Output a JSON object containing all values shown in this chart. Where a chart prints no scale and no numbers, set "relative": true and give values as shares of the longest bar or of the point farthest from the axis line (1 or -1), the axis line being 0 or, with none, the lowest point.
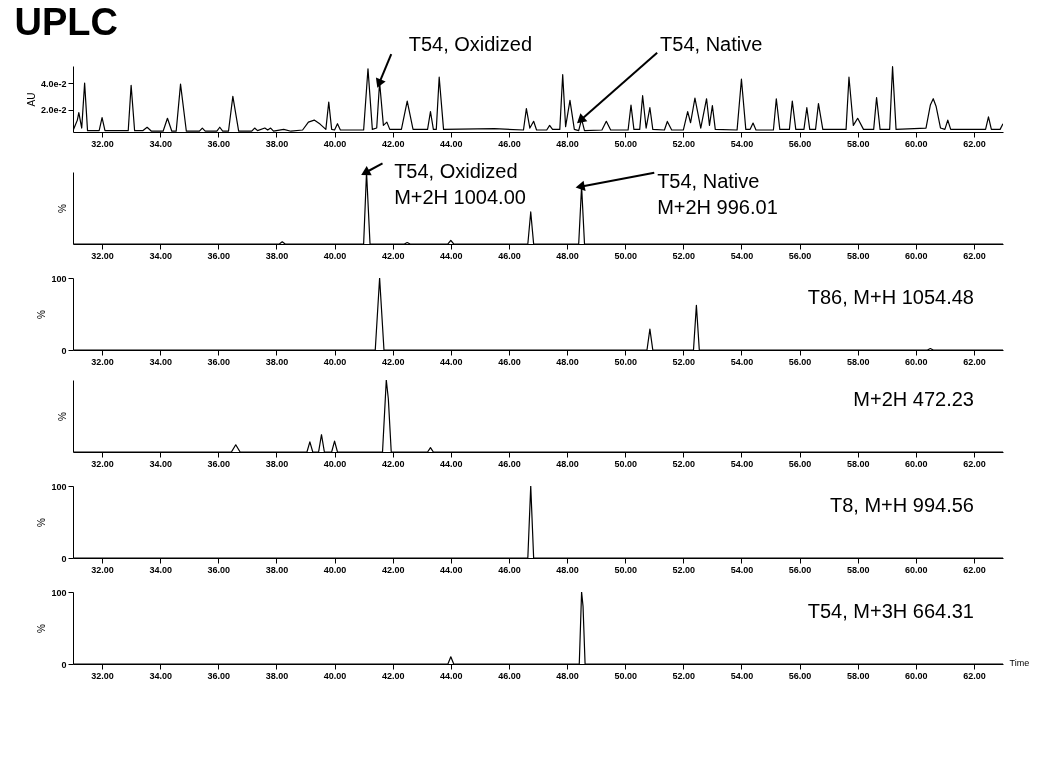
{
  "chart_data": [
    {
      "type": "line",
      "title": "UPLC",
      "ylabel": "AU",
      "grid": false,
      "legend": false,
      "color": "#000000",
      "xlim": [
        31,
        63
      ],
      "xticks": [
        {
          "value": 32,
          "label": "32.00"
        },
        {
          "value": 34,
          "label": "34.00"
        },
        {
          "value": 36,
          "label": "36.00"
        },
        {
          "value": 38,
          "label": "38.00"
        },
        {
          "value": 40,
          "label": "40.00"
        },
        {
          "value": 42,
          "label": "42.00"
        },
        {
          "value": 44,
          "label": "44.00"
        },
        {
          "value": 46,
          "label": "46.00"
        },
        {
          "value": 48,
          "label": "48.00"
        },
        {
          "value": 50,
          "label": "50.00"
        },
        {
          "value": 52,
          "label": "52.00"
        },
        {
          "value": 54,
          "label": "54.00"
        },
        {
          "value": 56,
          "label": "56.00"
        },
        {
          "value": 58,
          "label": "58.00"
        },
        {
          "value": 60,
          "label": "60.00"
        },
        {
          "value": 62,
          "label": "62.00"
        }
      ],
      "ylim": [
        0.003,
        0.053
      ],
      "yticks": [
        {
          "value": 0.02,
          "label": "2.0e-2"
        },
        {
          "value": 0.04,
          "label": "4.0e-2"
        }
      ],
      "x": [
        31.0,
        31.15,
        31.2,
        31.3,
        31.4,
        31.5,
        31.9,
        32.0,
        32.1,
        32.9,
        33.0,
        33.12,
        33.4,
        33.55,
        33.7,
        34.1,
        34.25,
        34.4,
        34.55,
        34.7,
        34.9,
        35.35,
        35.45,
        35.55,
        35.95,
        36.05,
        36.15,
        36.35,
        36.5,
        36.7,
        37.15,
        37.25,
        37.35,
        37.6,
        37.7,
        37.8,
        37.9,
        38.25,
        38.5,
        38.9,
        39.1,
        39.3,
        39.5,
        39.7,
        39.8,
        39.9,
        40.0,
        40.1,
        40.2,
        41.0,
        41.15,
        41.3,
        41.45,
        41.55,
        41.68,
        41.8,
        41.9,
        42.3,
        42.5,
        42.7,
        43.2,
        43.3,
        43.4,
        43.5,
        43.6,
        43.75,
        45.5,
        46.5,
        46.6,
        46.72,
        46.85,
        46.95,
        47.3,
        47.4,
        47.5,
        47.75,
        47.85,
        47.95,
        48.1,
        48.25,
        48.4,
        48.5,
        48.6,
        49.2,
        49.35,
        49.5,
        50.1,
        50.2,
        50.3,
        50.5,
        50.6,
        50.72,
        50.85,
        50.95,
        51.35,
        51.45,
        51.6,
        52.0,
        52.15,
        52.25,
        52.4,
        52.6,
        52.8,
        52.9,
        53.0,
        53.1,
        53.85,
        54.0,
        54.15,
        54.3,
        54.4,
        54.5,
        55.1,
        55.2,
        55.32,
        55.65,
        55.75,
        55.87,
        56.15,
        56.25,
        56.35,
        56.55,
        56.65,
        56.8,
        57.6,
        57.7,
        57.85,
        58.0,
        58.2,
        58.55,
        58.65,
        58.77,
        59.1,
        59.2,
        59.32,
        60.35,
        60.5,
        60.6,
        60.7,
        60.85,
        61.0,
        61.1,
        61.2,
        62.4,
        62.5,
        62.6,
        62.9,
        63.0
      ],
      "values": [
        0.004,
        0.012,
        0.0177,
        0.006,
        0.04,
        0.004,
        0.004,
        0.0139,
        0.004,
        0.004,
        0.0384,
        0.004,
        0.004,
        0.0066,
        0.0036,
        0.0036,
        0.0134,
        0.0036,
        0.0036,
        0.0393,
        0.0036,
        0.0036,
        0.0059,
        0.0036,
        0.0036,
        0.0066,
        0.0036,
        0.0036,
        0.03,
        0.0036,
        0.0036,
        0.006,
        0.004,
        0.006,
        0.0045,
        0.006,
        0.0036,
        0.005,
        0.0036,
        0.0045,
        0.0105,
        0.012,
        0.009,
        0.005,
        0.0257,
        0.005,
        0.0045,
        0.0093,
        0.0045,
        0.0045,
        0.0509,
        0.005,
        0.006,
        0.0407,
        0.008,
        0.0105,
        0.005,
        0.005,
        0.0264,
        0.005,
        0.005,
        0.0184,
        0.005,
        0.005,
        0.0445,
        0.005,
        0.0055,
        0.0045,
        0.0207,
        0.006,
        0.0111,
        0.0045,
        0.0045,
        0.008,
        0.005,
        0.005,
        0.0464,
        0.007,
        0.027,
        0.005,
        0.004,
        0.0127,
        0.004,
        0.0045,
        0.0111,
        0.0045,
        0.0045,
        0.0234,
        0.005,
        0.005,
        0.0305,
        0.006,
        0.0214,
        0.005,
        0.0045,
        0.011,
        0.0045,
        0.0045,
        0.0184,
        0.01,
        0.0286,
        0.006,
        0.0282,
        0.008,
        0.023,
        0.005,
        0.0045,
        0.043,
        0.005,
        0.005,
        0.0098,
        0.0045,
        0.0045,
        0.0282,
        0.005,
        0.005,
        0.0264,
        0.005,
        0.005,
        0.0214,
        0.005,
        0.005,
        0.0245,
        0.005,
        0.005,
        0.0445,
        0.008,
        0.0134,
        0.005,
        0.005,
        0.0291,
        0.005,
        0.005,
        0.0525,
        0.005,
        0.006,
        0.0234,
        0.0282,
        0.0223,
        0.006,
        0.005,
        0.012,
        0.005,
        0.005,
        0.0145,
        0.005,
        0.005,
        0.0093
      ],
      "annotations": [
        {
          "text": "T54, Oxidized",
          "x": 41.55,
          "y": 0.0407
        },
        {
          "text": "T54, Native",
          "x": 48.5,
          "y": 0.0127
        }
      ]
    },
    {
      "type": "line",
      "ylabel": "%",
      "relative": true,
      "grid": false,
      "legend": false,
      "color": "#000000",
      "xlim": [
        31,
        63
      ],
      "xticks": [
        {
          "value": 32,
          "label": "32.00"
        },
        {
          "value": 34,
          "label": "34.00"
        },
        {
          "value": 36,
          "label": "36.00"
        },
        {
          "value": 38,
          "label": "38.00"
        },
        {
          "value": 40,
          "label": "40.00"
        },
        {
          "value": 42,
          "label": "42.00"
        },
        {
          "value": 44,
          "label": "44.00"
        },
        {
          "value": 46,
          "label": "46.00"
        },
        {
          "value": 48,
          "label": "48.00"
        },
        {
          "value": 50,
          "label": "50.00"
        },
        {
          "value": 52,
          "label": "52.00"
        },
        {
          "value": 54,
          "label": "54.00"
        },
        {
          "value": 56,
          "label": "56.00"
        },
        {
          "value": 58,
          "label": "58.00"
        },
        {
          "value": 60,
          "label": "60.00"
        },
        {
          "value": 62,
          "label": "62.00"
        }
      ],
      "x": [
        31.0,
        38.1,
        38.2,
        38.3,
        41.0,
        41.1,
        41.22,
        42.4,
        42.5,
        42.6,
        43.9,
        44.0,
        44.1,
        46.65,
        46.75,
        46.85,
        48.4,
        48.5,
        48.6,
        63.0
      ],
      "values": [
        0,
        0,
        0.03,
        0,
        0,
        1,
        0,
        0,
        0.02,
        0,
        0,
        0.05,
        0,
        0,
        0.445,
        0,
        0,
        0.8,
        0,
        0
      ],
      "annotations": [
        {
          "text": "T54, Oxidized\nM+2H 1004.00",
          "x": 41.1,
          "y": 1
        },
        {
          "text": "T54, Native\nM+2H 996.01",
          "x": 48.5,
          "y": 0.8
        }
      ]
    },
    {
      "type": "line",
      "ylabel": "%",
      "grid": false,
      "legend": false,
      "color": "#000000",
      "ylim": [
        0,
        100
      ],
      "yticks": [
        0,
        100
      ],
      "xlim": [
        31,
        63
      ],
      "xticks": [
        {
          "value": 32,
          "label": "32.00"
        },
        {
          "value": 34,
          "label": "34.00"
        },
        {
          "value": 36,
          "label": "36.00"
        },
        {
          "value": 38,
          "label": "38.00"
        },
        {
          "value": 40,
          "label": "40.00"
        },
        {
          "value": 42,
          "label": "42.00"
        },
        {
          "value": 44,
          "label": "44.00"
        },
        {
          "value": 46,
          "label": "46.00"
        },
        {
          "value": 48,
          "label": "48.00"
        },
        {
          "value": 50,
          "label": "50.00"
        },
        {
          "value": 52,
          "label": "52.00"
        },
        {
          "value": 54,
          "label": "54.00"
        },
        {
          "value": 56,
          "label": "56.00"
        },
        {
          "value": 58,
          "label": "58.00"
        },
        {
          "value": 60,
          "label": "60.00"
        },
        {
          "value": 62,
          "label": "62.00"
        }
      ],
      "x": [
        31.0,
        41.4,
        41.55,
        41.7,
        50.75,
        50.85,
        50.95,
        52.35,
        52.45,
        52.55,
        60.4,
        60.5,
        60.6,
        63.0
      ],
      "values": [
        0,
        0,
        100,
        0,
        0,
        29,
        0,
        0,
        62,
        0,
        0,
        2,
        0,
        0
      ],
      "annotations": [
        "T86, M+H 1054.48"
      ]
    },
    {
      "type": "line",
      "ylabel": "%",
      "relative": true,
      "grid": false,
      "legend": false,
      "color": "#000000",
      "xlim": [
        31,
        63
      ],
      "xticks": [
        {
          "value": 32,
          "label": "32.00"
        },
        {
          "value": 34,
          "label": "34.00"
        },
        {
          "value": 36,
          "label": "36.00"
        },
        {
          "value": 38,
          "label": "38.00"
        },
        {
          "value": 40,
          "label": "40.00"
        },
        {
          "value": 42,
          "label": "42.00"
        },
        {
          "value": 44,
          "label": "44.00"
        },
        {
          "value": 46,
          "label": "46.00"
        },
        {
          "value": 48,
          "label": "48.00"
        },
        {
          "value": 50,
          "label": "50.00"
        },
        {
          "value": 52,
          "label": "52.00"
        },
        {
          "value": 54,
          "label": "54.00"
        },
        {
          "value": 56,
          "label": "56.00"
        },
        {
          "value": 58,
          "label": "58.00"
        },
        {
          "value": 60,
          "label": "60.00"
        },
        {
          "value": 62,
          "label": "62.00"
        }
      ],
      "x": [
        31.0,
        36.45,
        36.6,
        36.75,
        39.05,
        39.15,
        39.25,
        39.45,
        39.55,
        39.65,
        39.9,
        40.0,
        40.1,
        41.65,
        41.78,
        41.85,
        41.95,
        43.2,
        43.3,
        43.4,
        63.0
      ],
      "values": [
        0,
        0,
        0.1,
        0,
        0,
        0.14,
        0,
        0,
        0.24,
        0,
        0,
        0.15,
        0,
        0,
        1,
        0.74,
        0,
        0,
        0.06,
        0,
        0
      ],
      "annotations": [
        "M+2H 472.23"
      ]
    },
    {
      "type": "line",
      "ylabel": "%",
      "grid": false,
      "legend": false,
      "color": "#000000",
      "ylim": [
        0,
        100
      ],
      "yticks": [
        0,
        100
      ],
      "xlim": [
        31,
        63
      ],
      "xticks": [
        {
          "value": 32,
          "label": "32.00"
        },
        {
          "value": 34,
          "label": "34.00"
        },
        {
          "value": 36,
          "label": "36.00"
        },
        {
          "value": 38,
          "label": "38.00"
        },
        {
          "value": 40,
          "label": "40.00"
        },
        {
          "value": 42,
          "label": "42.00"
        },
        {
          "value": 44,
          "label": "44.00"
        },
        {
          "value": 46,
          "label": "46.00"
        },
        {
          "value": 48,
          "label": "48.00"
        },
        {
          "value": 50,
          "label": "50.00"
        },
        {
          "value": 52,
          "label": "52.00"
        },
        {
          "value": 54,
          "label": "54.00"
        },
        {
          "value": 56,
          "label": "56.00"
        },
        {
          "value": 58,
          "label": "58.00"
        },
        {
          "value": 60,
          "label": "60.00"
        },
        {
          "value": 62,
          "label": "62.00"
        }
      ],
      "x": [
        31.0,
        46.65,
        46.75,
        46.85,
        63.0
      ],
      "values": [
        0,
        0,
        100,
        0,
        0
      ],
      "annotations": [
        "T8, M+H 994.56"
      ]
    },
    {
      "type": "line",
      "ylabel": "%",
      "xlabel": "Time",
      "grid": false,
      "legend": false,
      "color": "#000000",
      "ylim": [
        0,
        100
      ],
      "yticks": [
        0,
        100
      ],
      "xlim": [
        31,
        63
      ],
      "xticks": [
        {
          "value": 32,
          "label": "32.00"
        },
        {
          "value": 34,
          "label": "34.00"
        },
        {
          "value": 36,
          "label": "36.00"
        },
        {
          "value": 38,
          "label": "38.00"
        },
        {
          "value": 40,
          "label": "40.00"
        },
        {
          "value": 42,
          "label": "42.00"
        },
        {
          "value": 44,
          "label": "44.00"
        },
        {
          "value": 46,
          "label": "46.00"
        },
        {
          "value": 48,
          "label": "48.00"
        },
        {
          "value": 50,
          "label": "50.00"
        },
        {
          "value": 52,
          "label": "52.00"
        },
        {
          "value": 54,
          "label": "54.00"
        },
        {
          "value": 56,
          "label": "56.00"
        },
        {
          "value": 58,
          "label": "58.00"
        },
        {
          "value": 60,
          "label": "60.00"
        },
        {
          "value": 62,
          "label": "62.00"
        }
      ],
      "x": [
        31.0,
        43.9,
        44.0,
        44.1,
        48.42,
        48.5,
        48.55,
        48.62,
        63.0
      ],
      "values": [
        0,
        0,
        10,
        0,
        0,
        100,
        80,
        0,
        0
      ],
      "annotations": [
        "T54, M+3H 664.31"
      ]
    }
  ]
}
